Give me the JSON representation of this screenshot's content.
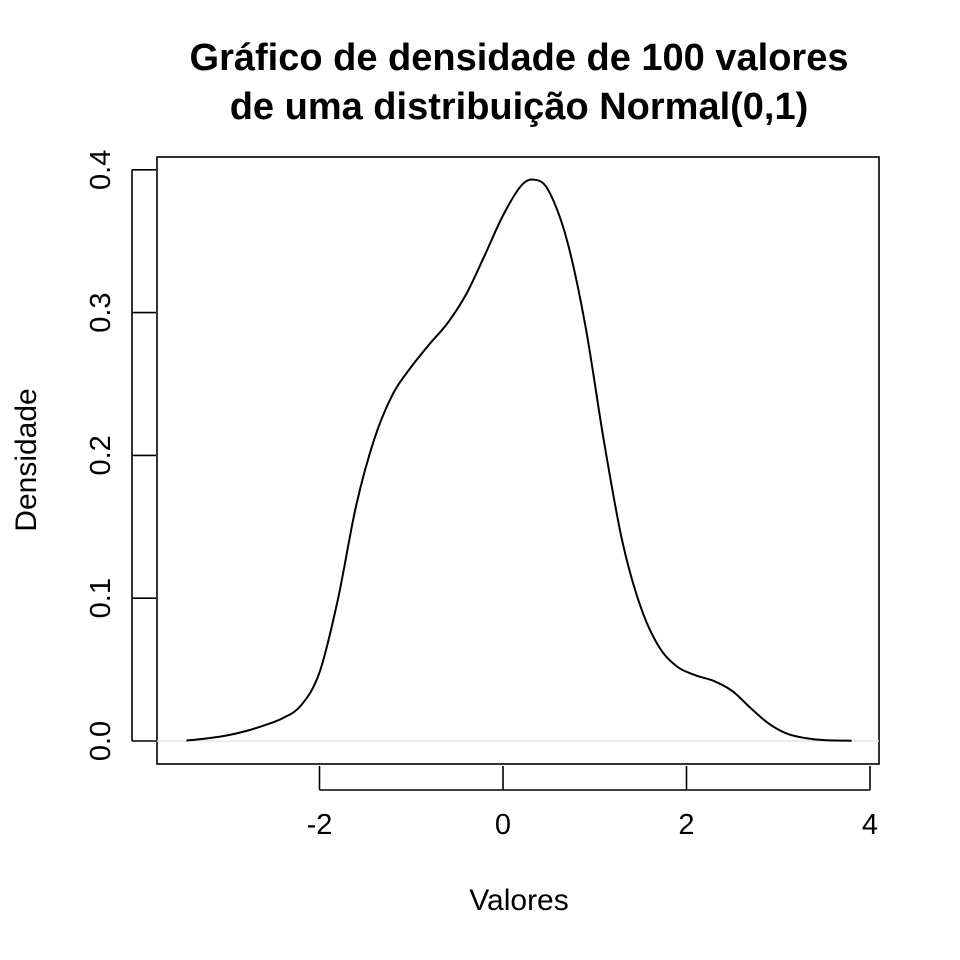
{
  "chart_data": {
    "type": "line",
    "title": [
      "Gráfico de densidade de 100 valores",
      "de uma distribuição Normal(0,1)"
    ],
    "xlabel": "Valores",
    "ylabel": "Densidade",
    "xlim": [
      -3.45,
      3.8
    ],
    "ylim": [
      0.0,
      0.4
    ],
    "x_ticks": [
      -2,
      0,
      2,
      4
    ],
    "x_tick_labels": [
      "-2",
      "0",
      "2",
      "4"
    ],
    "y_ticks": [
      0.0,
      0.1,
      0.2,
      0.3,
      0.4
    ],
    "y_tick_labels": [
      "0.0",
      "0.1",
      "0.2",
      "0.3",
      "0.4"
    ],
    "grid": false,
    "baseline": 0.0,
    "series": [
      {
        "color": "#000000",
        "x": [
          -3.45,
          -3.2,
          -3.0,
          -2.8,
          -2.6,
          -2.4,
          -2.2,
          -2.0,
          -1.8,
          -1.6,
          -1.4,
          -1.2,
          -1.0,
          -0.8,
          -0.6,
          -0.4,
          -0.2,
          0.0,
          0.2,
          0.35,
          0.5,
          0.7,
          0.9,
          1.1,
          1.3,
          1.5,
          1.7,
          1.9,
          2.1,
          2.3,
          2.5,
          2.7,
          2.9,
          3.1,
          3.3,
          3.5,
          3.8
        ],
        "y": [
          0.0003,
          0.002,
          0.004,
          0.007,
          0.011,
          0.016,
          0.025,
          0.048,
          0.099,
          0.165,
          0.212,
          0.243,
          0.262,
          0.278,
          0.293,
          0.313,
          0.34,
          0.368,
          0.389,
          0.393,
          0.385,
          0.35,
          0.29,
          0.21,
          0.14,
          0.094,
          0.066,
          0.052,
          0.046,
          0.042,
          0.035,
          0.023,
          0.012,
          0.005,
          0.002,
          0.0006,
          0.0002
        ]
      }
    ]
  }
}
